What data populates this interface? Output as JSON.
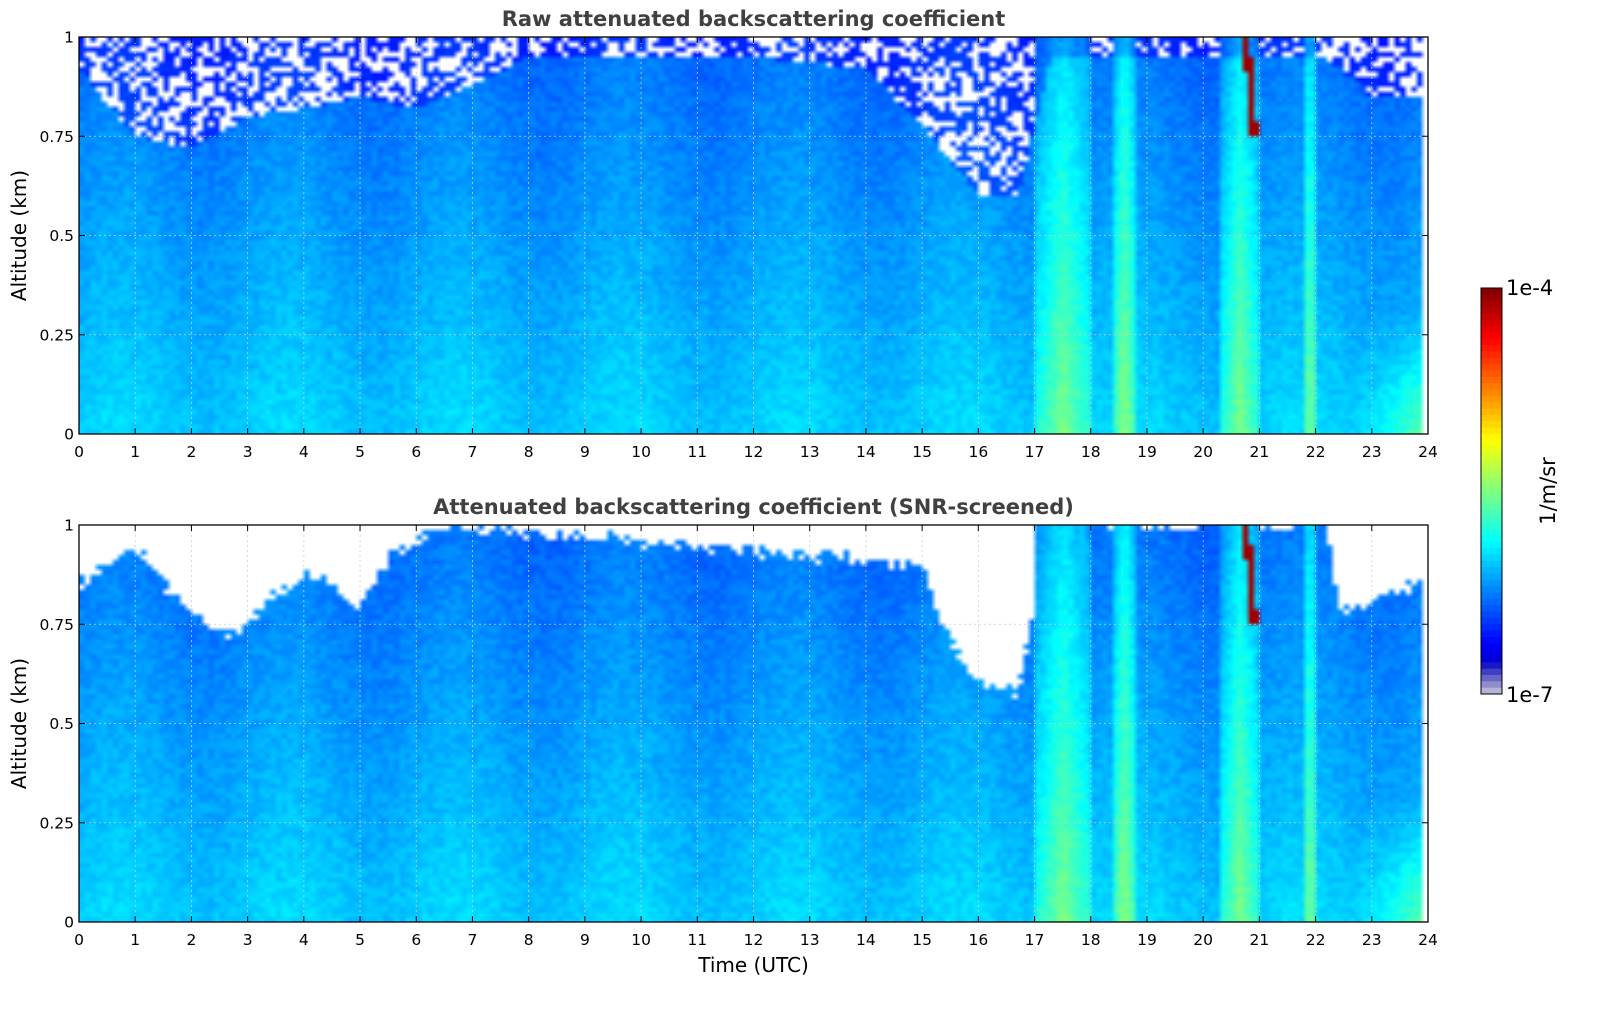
{
  "chart_data": [
    {
      "type": "heatmap",
      "title": "Raw attenuated backscattering coefficient",
      "xlabel": "",
      "ylabel": "Altitude (km)",
      "xlim": [
        0,
        24
      ],
      "ylim": [
        0,
        1
      ],
      "xticks": [
        "0",
        "1",
        "2",
        "3",
        "4",
        "5",
        "6",
        "7",
        "8",
        "9",
        "10",
        "11",
        "12",
        "13",
        "14",
        "15",
        "16",
        "17",
        "18",
        "19",
        "20",
        "21",
        "22",
        "23",
        "24"
      ],
      "yticks": [
        "0",
        "0.25",
        "0.5",
        "0.75",
        "1"
      ],
      "grid": true,
      "data_x_end": 23.85,
      "screened": false,
      "features": {
        "clear_top_altitude_vs_time": [
          [
            0,
            0.92
          ],
          [
            1,
            0.75
          ],
          [
            2,
            0.72
          ],
          [
            3,
            0.8
          ],
          [
            4,
            0.82
          ],
          [
            5,
            0.85
          ],
          [
            6,
            0.82
          ],
          [
            7,
            0.88
          ],
          [
            8,
            0.95
          ],
          [
            10,
            0.95
          ],
          [
            12,
            0.95
          ],
          [
            14,
            0.92
          ],
          [
            15,
            0.78
          ],
          [
            16,
            0.6
          ],
          [
            16.7,
            0.6
          ],
          [
            17.3,
            0.95
          ],
          [
            22.2,
            0.95
          ],
          [
            23,
            0.85
          ],
          [
            23.85,
            0.85
          ]
        ],
        "bright_plumes_time_ranges": [
          [
            17,
            18
          ],
          [
            18.4,
            18.8
          ],
          [
            20.3,
            21
          ],
          [
            21.8,
            22
          ]
        ],
        "thin_cloud": {
          "time": [
            20.4,
            21.0
          ],
          "altitude": [
            0.75,
            1.0
          ]
        }
      }
    },
    {
      "type": "heatmap",
      "title": "Attenuated backscattering coefficient (SNR-screened)",
      "xlabel": "Time (UTC)",
      "ylabel": "Altitude (km)",
      "xlim": [
        0,
        24
      ],
      "ylim": [
        0,
        1
      ],
      "xticks": [
        "0",
        "1",
        "2",
        "3",
        "4",
        "5",
        "6",
        "7",
        "8",
        "9",
        "10",
        "11",
        "12",
        "13",
        "14",
        "15",
        "16",
        "17",
        "18",
        "19",
        "20",
        "21",
        "22",
        "23",
        "24"
      ],
      "yticks": [
        "0",
        "0.25",
        "0.5",
        "0.75",
        "1"
      ],
      "grid": true,
      "data_x_end": 23.85,
      "screened": true,
      "features": {
        "screen_boundary_altitude_vs_time": [
          [
            0,
            0.85
          ],
          [
            0.5,
            0.9
          ],
          [
            1,
            0.95
          ],
          [
            1.5,
            0.85
          ],
          [
            2,
            0.78
          ],
          [
            2.7,
            0.72
          ],
          [
            3.3,
            0.8
          ],
          [
            4,
            0.88
          ],
          [
            5,
            0.8
          ],
          [
            5.5,
            0.92
          ],
          [
            6.5,
            1.0
          ],
          [
            15,
            0.9
          ],
          [
            15.5,
            0.7
          ],
          [
            16,
            0.6
          ],
          [
            16.7,
            0.58
          ],
          [
            17.2,
            0.95
          ],
          [
            17.5,
            1.0
          ],
          [
            22.2,
            1.0
          ],
          [
            22.4,
            0.78
          ],
          [
            23.85,
            0.85
          ]
        ],
        "bright_plumes_time_ranges": [
          [
            17,
            18
          ],
          [
            18.4,
            18.8
          ],
          [
            20.3,
            21
          ],
          [
            21.8,
            22
          ]
        ],
        "thin_cloud": {
          "time": [
            20.4,
            21.0
          ],
          "altitude": [
            0.75,
            1.0
          ]
        }
      }
    }
  ],
  "colorbar": {
    "label": "1/m/sr",
    "max_label": "1e-4",
    "min_label": "1e-7",
    "scale": "log",
    "range": [
      1e-07,
      0.0001
    ],
    "colormap": "jet"
  }
}
